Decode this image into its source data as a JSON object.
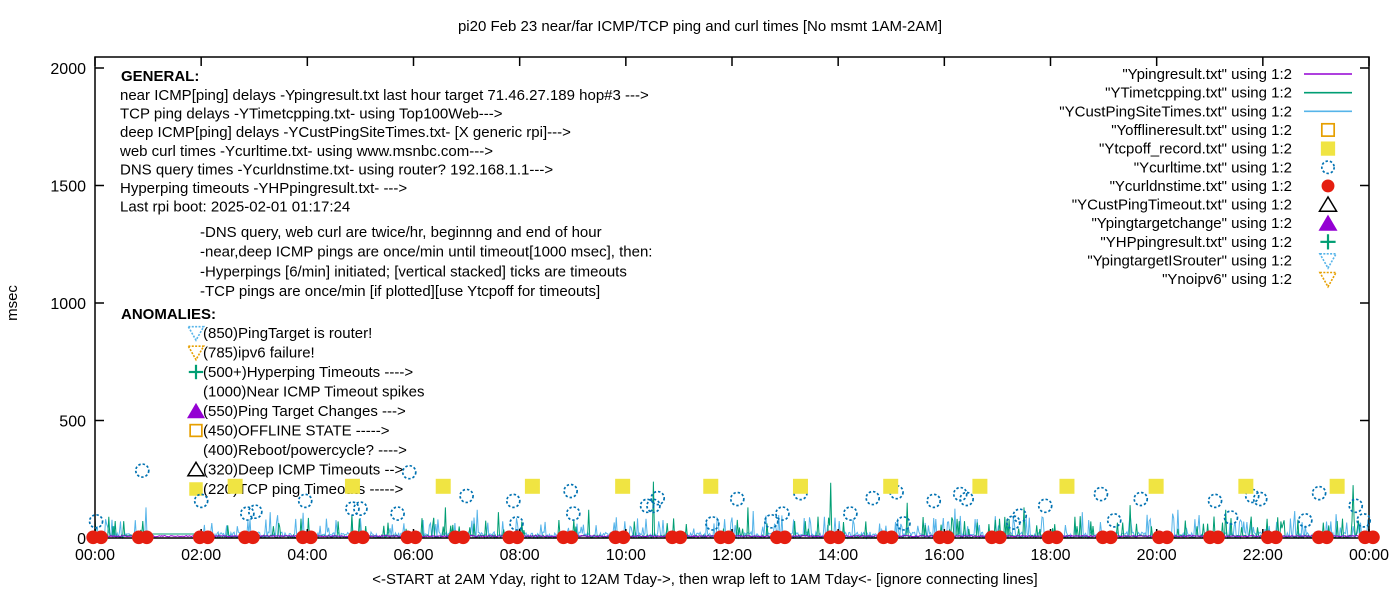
{
  "title": "pi20 Feb 23  near/far ICMP/TCP ping and curl times [No msmt 1AM-2AM]",
  "xlabel": "<-START at 2AM Yday, right to 12AM Tday->, then wrap left to 1AM Tday<- [ignore connecting lines]",
  "ylabel": "msec",
  "axes": {
    "x_tick_labels": [
      "00:00",
      "02:00",
      "04:00",
      "06:00",
      "08:00",
      "10:00",
      "12:00",
      "14:00",
      "16:00",
      "18:00",
      "20:00",
      "22:00",
      "00:00"
    ],
    "y_tick_labels": [
      "0",
      "500",
      "1000",
      "1500",
      "2000"
    ],
    "y_tick_values": [
      0,
      500,
      1000,
      1500,
      2000
    ]
  },
  "legend": [
    {
      "label": "\"Ypingresult.txt\" using 1:2",
      "sample": "line",
      "color": "#9400D3"
    },
    {
      "label": "\"YTimetcpping.txt\" using 1:2",
      "sample": "line",
      "color": "#009E73"
    },
    {
      "label": "\"YCustPingSiteTimes.txt\" using 1:2",
      "sample": "line",
      "color": "#56B4E9"
    },
    {
      "label": "\"Yofflineresult.txt\" using 1:2",
      "sample": "open-square",
      "color": "#E69F00"
    },
    {
      "label": "\"Ytcpoff_record.txt\" using 1:2",
      "sample": "filled-square",
      "color": "#F0E442"
    },
    {
      "label": "\"Ycurltime.txt\" using 1:2",
      "sample": "open-circle",
      "color": "#0072B2"
    },
    {
      "label": "\"Ycurldnstime.txt\" using 1:2",
      "sample": "filled-circle",
      "color": "#E51E10"
    },
    {
      "label": "\"YCustPingTimeout.txt\" using 1:2",
      "sample": "open-triangle-up",
      "color": "#000000"
    },
    {
      "label": "\"Ypingtargetchange\" using 1:2",
      "sample": "filled-triangle-up",
      "color": "#9400D3"
    },
    {
      "label": "\"YHPpingresult.txt\" using 1:2",
      "sample": "plus",
      "color": "#009E73"
    },
    {
      "label": "\"YpingtargetISrouter\" using 1:2",
      "sample": "open-triangle-down",
      "color": "#56B4E9"
    },
    {
      "label": "\"Ynoipv6\" using 1:2",
      "sample": "open-triangle-down",
      "color": "#E69F00"
    }
  ],
  "general": {
    "heading": "GENERAL:",
    "lines": [
      "near ICMP[ping] delays -Ypingresult.txt last hour target 71.46.27.189 hop#3 --->",
      "TCP ping delays -YTimetcpping.txt- using Top100Web--->",
      "deep ICMP[ping] delays -YCustPingSiteTimes.txt- [X generic rpi]--->",
      "web curl times -Ycurltime.txt- using www.msnbc.com--->",
      "DNS query times -Ycurldnstime.txt- using router? 192.168.1.1--->",
      "Hyperping timeouts -YHPpingresult.txt- --->",
      "Last rpi boot: 2025-02-01 01:17:24"
    ],
    "notes": [
      "-DNS query, web curl are twice/hr, beginnng and end of hour",
      "-near,deep ICMP pings are once/min until timeout[1000 msec], then:",
      " -Hyperpings [6/min] initiated; [vertical stacked] ticks are timeouts",
      "-TCP pings are once/min [if plotted][use Ytcpoff for timeouts]"
    ]
  },
  "anomalies": {
    "heading": "ANOMALIES:",
    "rows": [
      {
        "marker": "open-triangle-down",
        "color": "#56B4E9",
        "label": "(850)PingTarget is router!"
      },
      {
        "marker": "open-triangle-down",
        "color": "#E69F00",
        "label": "(785)ipv6 failure!"
      },
      {
        "marker": "plus",
        "color": "#009E73",
        "label": "(500+)Hyperping Timeouts ---->"
      },
      {
        "marker": "none",
        "color": "",
        "label": "(1000)Near ICMP Timeout spikes"
      },
      {
        "marker": "filled-triangle-up",
        "color": "#9400D3",
        "label": "(550)Ping Target Changes --->"
      },
      {
        "marker": "open-square",
        "color": "#E69F00",
        "label": "(450)OFFLINE STATE ----->"
      },
      {
        "marker": "none",
        "color": "",
        "label": "(400)Reboot/powercycle? ---->"
      },
      {
        "marker": "open-triangle-up",
        "color": "#000000",
        "label": "(320)Deep ICMP Timeouts -->"
      },
      {
        "marker": "filled-square",
        "color": "#F0E442",
        "label": "(220)TCP ping Timeouts ----->"
      }
    ]
  },
  "chart_data": {
    "type": "line",
    "x_unit": "hour-of-day",
    "x_range": [
      0,
      24
    ],
    "ylim": [
      0,
      2045
    ],
    "grid": false,
    "legend_position": "top-right",
    "no_measurement_gap_hours": [
      1.07,
      2.05
    ],
    "gap_flat_value_msec": 17,
    "series": [
      {
        "name": "Ypingresult.txt",
        "style": "line",
        "color": "#9400D3",
        "summary": "near ICMP ping delay, flat ~8 msec across all 24h",
        "seed": 21,
        "base_msec": 8,
        "jitter_msec": 5
      },
      {
        "name": "YTimetcpping.txt",
        "style": "line",
        "color": "#009E73",
        "summary": "TCP ping delay noise 0-90 msec with taller timeout spikes",
        "seed": 7,
        "jitter_msec": 13,
        "burst_chance": 0.1,
        "burst_extra_msec": 55,
        "spikes": [
          [
            4.85,
            100
          ],
          [
            6.6,
            130
          ],
          [
            7.6,
            110
          ],
          [
            9.3,
            120
          ],
          [
            10.52,
            240
          ],
          [
            12.3,
            130
          ],
          [
            13.85,
            235
          ],
          [
            15.3,
            150
          ],
          [
            17.5,
            130
          ],
          [
            19.5,
            140
          ],
          [
            21.3,
            120
          ],
          [
            23.7,
            225
          ]
        ]
      },
      {
        "name": "YCustPingSiteTimes.txt",
        "style": "line",
        "color": "#56B4E9",
        "summary": "deep ICMP ping delay noise 0-110 msec",
        "seed": 13,
        "jitter_msec": 26,
        "burst_chance": 0.14,
        "burst_extra_msec": 55,
        "spikes": [
          [
            0.95,
            130
          ],
          [
            3.3,
            110
          ],
          [
            7.2,
            120
          ],
          [
            12.4,
            115
          ],
          [
            16.2,
            125
          ],
          [
            18.6,
            110
          ],
          [
            20.4,
            120
          ],
          [
            22.6,
            115
          ]
        ]
      },
      {
        "name": "Ycurltime.txt",
        "style": "scatter",
        "marker": "open-circle",
        "color": "#0072B2",
        "points_hour_msec": [
          [
            0.02,
            71
          ],
          [
            0.89,
            287
          ],
          [
            2.0,
            158
          ],
          [
            2.87,
            104
          ],
          [
            3.02,
            112
          ],
          [
            3.96,
            158
          ],
          [
            4.85,
            125
          ],
          [
            5.0,
            125
          ],
          [
            5.7,
            104
          ],
          [
            5.92,
            280
          ],
          [
            7.0,
            179
          ],
          [
            7.88,
            158
          ],
          [
            7.94,
            62
          ],
          [
            8.96,
            200
          ],
          [
            9.01,
            104
          ],
          [
            10.4,
            137
          ],
          [
            10.52,
            137
          ],
          [
            10.6,
            170
          ],
          [
            11.63,
            62
          ],
          [
            12.1,
            166
          ],
          [
            12.74,
            71
          ],
          [
            12.95,
            104
          ],
          [
            13.29,
            191
          ],
          [
            14.23,
            104
          ],
          [
            14.65,
            170
          ],
          [
            15.1,
            195
          ],
          [
            15.23,
            62
          ],
          [
            15.8,
            158
          ],
          [
            16.3,
            187
          ],
          [
            16.42,
            166
          ],
          [
            17.3,
            66
          ],
          [
            17.42,
            95
          ],
          [
            17.9,
            137
          ],
          [
            18.95,
            187
          ],
          [
            19.2,
            75
          ],
          [
            19.7,
            166
          ],
          [
            21.1,
            158
          ],
          [
            21.4,
            87
          ],
          [
            21.8,
            179
          ],
          [
            21.95,
            166
          ],
          [
            22.8,
            75
          ],
          [
            23.06,
            191
          ],
          [
            23.75,
            137
          ],
          [
            23.9,
            75
          ]
        ]
      },
      {
        "name": "Ycurldnstime.txt",
        "style": "scatter",
        "marker": "filled-circle",
        "color": "#E51E10",
        "value_msec": 3,
        "hours": [
          0.04,
          0.9,
          2.05,
          2.9,
          3.99,
          4.97,
          5.96,
          6.86,
          7.88,
          8.9,
          9.88,
          10.95,
          11.86,
          12.92,
          13.93,
          14.93,
          15.99,
          16.97,
          18.04,
          19.06,
          20.12,
          21.08,
          22.17,
          23.13,
          24.0
        ]
      },
      {
        "name": "Ytcpoff_record.txt",
        "style": "scatter",
        "marker": "filled-square",
        "color": "#F0E442",
        "value_msec": 220,
        "hours": [
          2.64,
          4.85,
          6.56,
          8.24,
          9.94,
          11.6,
          13.29,
          14.99,
          16.67,
          18.31,
          19.99,
          21.68,
          23.4
        ]
      }
    ]
  }
}
